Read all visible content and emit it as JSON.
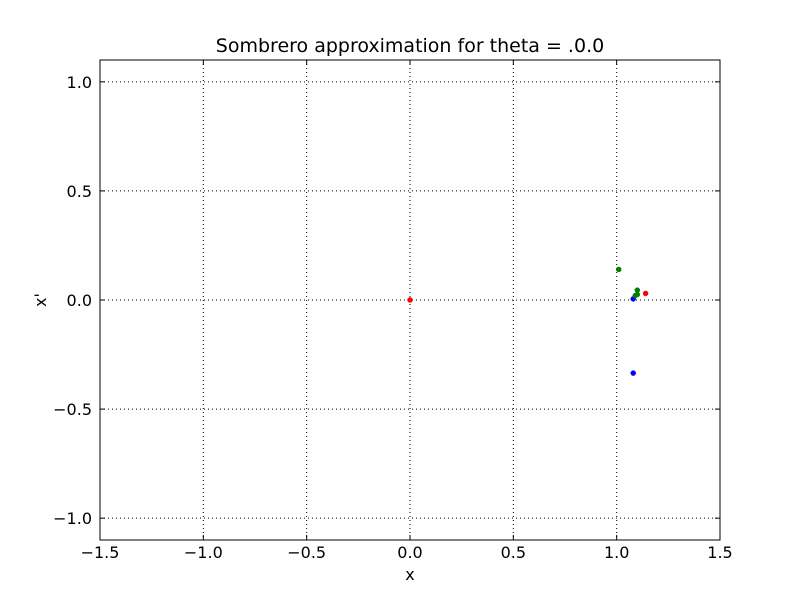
{
  "chart_data": {
    "type": "scatter",
    "title": "Sombrero approximation for theta = .0.0",
    "xlabel": "x",
    "ylabel": "x'",
    "xlim": [
      -1.5,
      1.5
    ],
    "ylim": [
      -1.1,
      1.1
    ],
    "x_ticks": [
      -1.5,
      -1.0,
      -0.5,
      0.0,
      0.5,
      1.0,
      1.5
    ],
    "y_ticks": [
      -1.0,
      -0.5,
      0.0,
      0.5,
      1.0
    ],
    "x_tick_labels": [
      "−1.5",
      "−1.0",
      "−0.5",
      "0.0",
      "0.5",
      "1.0",
      "1.5"
    ],
    "y_tick_labels": [
      "−1.0",
      "−0.5",
      "0.0",
      "0.5",
      "1.0"
    ],
    "grid": true,
    "grid_style": "dotted",
    "series": [
      {
        "color": "#ff0000",
        "points": [
          [
            0.0,
            0.0
          ],
          [
            1.14,
            0.03
          ]
        ]
      },
      {
        "color": "#0000ff",
        "points": [
          [
            1.08,
            0.005
          ],
          [
            1.08,
            -0.335
          ]
        ]
      },
      {
        "color": "#008000",
        "points": [
          [
            1.01,
            0.14
          ],
          [
            1.1,
            0.045
          ],
          [
            1.1,
            0.025
          ],
          [
            1.09,
            0.02
          ]
        ]
      }
    ]
  }
}
